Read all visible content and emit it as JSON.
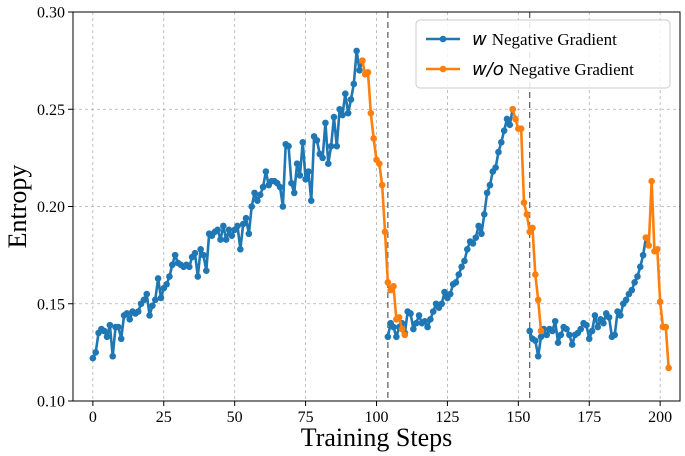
{
  "chart_data": {
    "type": "line",
    "title": "",
    "xlabel": "Training Steps",
    "ylabel": "Entropy",
    "xlim": [
      -7,
      207
    ],
    "ylim": [
      0.1,
      0.3
    ],
    "xticks": [
      0,
      25,
      50,
      75,
      100,
      125,
      150,
      175,
      200
    ],
    "yticks": [
      0.1,
      0.15,
      0.2,
      0.25,
      0.3
    ],
    "xtick_labels": [
      "0",
      "25",
      "50",
      "75",
      "100",
      "125",
      "150",
      "175",
      "200"
    ],
    "ytick_labels": [
      "0.10",
      "0.15",
      "0.20",
      "0.25",
      "0.30"
    ],
    "grid": true,
    "legend_position": "top-right",
    "vlines": [
      104,
      154
    ],
    "series": [
      {
        "name_prefix": "w",
        "name_suffix": "Negative Gradient",
        "color": "#1f77b4",
        "segments": [
          [
            [
              0,
              0.122
            ],
            [
              1,
              0.125
            ],
            [
              2,
              0.135
            ],
            [
              3,
              0.137
            ],
            [
              4,
              0.136
            ],
            [
              5,
              0.133
            ],
            [
              6,
              0.139
            ],
            [
              7,
              0.123
            ],
            [
              8,
              0.138
            ],
            [
              9,
              0.138
            ],
            [
              10,
              0.132
            ],
            [
              11,
              0.144
            ],
            [
              12,
              0.145
            ],
            [
              13,
              0.142
            ],
            [
              14,
              0.146
            ],
            [
              15,
              0.145
            ],
            [
              16,
              0.146
            ],
            [
              17,
              0.15
            ],
            [
              18,
              0.152
            ],
            [
              19,
              0.155
            ],
            [
              20,
              0.144
            ],
            [
              21,
              0.149
            ],
            [
              22,
              0.152
            ],
            [
              23,
              0.163
            ],
            [
              24,
              0.153
            ],
            [
              25,
              0.158
            ],
            [
              26,
              0.16
            ],
            [
              27,
              0.164
            ],
            [
              28,
              0.17
            ],
            [
              29,
              0.175
            ],
            [
              30,
              0.171
            ],
            [
              31,
              0.17
            ],
            [
              32,
              0.169
            ],
            [
              33,
              0.17
            ],
            [
              34,
              0.169
            ],
            [
              35,
              0.174
            ],
            [
              36,
              0.176
            ],
            [
              37,
              0.164
            ],
            [
              38,
              0.178
            ],
            [
              39,
              0.175
            ],
            [
              40,
              0.167
            ],
            [
              41,
              0.186
            ],
            [
              42,
              0.185
            ],
            [
              43,
              0.187
            ],
            [
              44,
              0.188
            ],
            [
              45,
              0.183
            ],
            [
              46,
              0.19
            ],
            [
              47,
              0.183
            ],
            [
              48,
              0.188
            ],
            [
              49,
              0.185
            ],
            [
              50,
              0.188
            ],
            [
              51,
              0.19
            ],
            [
              52,
              0.178
            ],
            [
              53,
              0.191
            ],
            [
              54,
              0.194
            ],
            [
              55,
              0.186
            ],
            [
              56,
              0.2
            ],
            [
              57,
              0.207
            ],
            [
              58,
              0.203
            ],
            [
              59,
              0.206
            ],
            [
              60,
              0.21
            ],
            [
              61,
              0.218
            ],
            [
              62,
              0.211
            ],
            [
              63,
              0.213
            ],
            [
              64,
              0.213
            ],
            [
              65,
              0.212
            ],
            [
              66,
              0.21
            ],
            [
              67,
              0.2
            ],
            [
              68,
              0.232
            ],
            [
              69,
              0.231
            ],
            [
              70,
              0.212
            ],
            [
              71,
              0.207
            ],
            [
              72,
              0.222
            ],
            [
              73,
              0.216
            ],
            [
              74,
              0.233
            ],
            [
              75,
              0.214
            ],
            [
              76,
              0.218
            ],
            [
              77,
              0.203
            ],
            [
              78,
              0.236
            ],
            [
              79,
              0.234
            ],
            [
              80,
              0.227
            ],
            [
              81,
              0.225
            ],
            [
              82,
              0.243
            ],
            [
              83,
              0.222
            ],
            [
              84,
              0.231
            ],
            [
              85,
              0.246
            ],
            [
              86,
              0.231
            ],
            [
              87,
              0.25
            ],
            [
              88,
              0.247
            ],
            [
              89,
              0.258
            ],
            [
              90,
              0.248
            ],
            [
              91,
              0.255
            ],
            [
              92,
              0.263
            ],
            [
              93,
              0.28
            ],
            [
              94,
              0.27
            ],
            [
              95,
              0.275
            ]
          ],
          [
            [
              104,
              0.133
            ],
            [
              105,
              0.14
            ],
            [
              106,
              0.138
            ],
            [
              107,
              0.133
            ],
            [
              108,
              0.138
            ],
            [
              109,
              0.14
            ],
            [
              110,
              0.135
            ],
            [
              111,
              0.146
            ],
            [
              112,
              0.145
            ],
            [
              113,
              0.137
            ],
            [
              114,
              0.14
            ],
            [
              115,
              0.144
            ],
            [
              116,
              0.14
            ],
            [
              117,
              0.141
            ],
            [
              118,
              0.138
            ],
            [
              119,
              0.142
            ],
            [
              120,
              0.146
            ],
            [
              121,
              0.15
            ],
            [
              122,
              0.148
            ],
            [
              123,
              0.15
            ],
            [
              124,
              0.156
            ],
            [
              125,
              0.153
            ],
            [
              126,
              0.155
            ],
            [
              127,
              0.16
            ],
            [
              128,
              0.161
            ],
            [
              129,
              0.165
            ],
            [
              130,
              0.169
            ],
            [
              131,
              0.172
            ],
            [
              132,
              0.178
            ],
            [
              133,
              0.182
            ],
            [
              134,
              0.181
            ],
            [
              135,
              0.184
            ],
            [
              136,
              0.19
            ],
            [
              137,
              0.186
            ],
            [
              138,
              0.196
            ],
            [
              139,
              0.207
            ],
            [
              140,
              0.211
            ],
            [
              141,
              0.218
            ],
            [
              142,
              0.22
            ],
            [
              143,
              0.228
            ],
            [
              144,
              0.233
            ],
            [
              145,
              0.239
            ],
            [
              146,
              0.245
            ],
            [
              147,
              0.242
            ],
            [
              148,
              0.25
            ]
          ],
          [
            [
              154,
              0.136
            ],
            [
              155,
              0.132
            ],
            [
              156,
              0.131
            ],
            [
              157,
              0.123
            ],
            [
              158,
              0.133
            ],
            [
              159,
              0.137
            ],
            [
              160,
              0.134
            ],
            [
              161,
              0.137
            ],
            [
              162,
              0.136
            ],
            [
              163,
              0.141
            ],
            [
              164,
              0.13
            ],
            [
              165,
              0.134
            ],
            [
              166,
              0.138
            ],
            [
              167,
              0.137
            ],
            [
              168,
              0.134
            ],
            [
              169,
              0.129
            ],
            [
              170,
              0.134
            ],
            [
              171,
              0.135
            ],
            [
              172,
              0.137
            ],
            [
              173,
              0.14
            ],
            [
              174,
              0.139
            ],
            [
              175,
              0.132
            ],
            [
              176,
              0.136
            ],
            [
              177,
              0.144
            ],
            [
              178,
              0.138
            ],
            [
              179,
              0.142
            ],
            [
              180,
              0.14
            ],
            [
              181,
              0.145
            ],
            [
              182,
              0.143
            ],
            [
              183,
              0.133
            ],
            [
              184,
              0.134
            ],
            [
              185,
              0.146
            ],
            [
              186,
              0.144
            ],
            [
              187,
              0.15
            ],
            [
              188,
              0.152
            ],
            [
              189,
              0.155
            ],
            [
              190,
              0.157
            ],
            [
              191,
              0.161
            ],
            [
              192,
              0.164
            ],
            [
              193,
              0.169
            ],
            [
              194,
              0.175
            ],
            [
              195,
              0.184
            ]
          ]
        ]
      },
      {
        "name_prefix": "w/o",
        "name_suffix": "Negative Gradient",
        "color": "#ff7f0e",
        "segments": [
          [
            [
              95,
              0.275
            ],
            [
              96,
              0.268
            ],
            [
              97,
              0.269
            ],
            [
              98,
              0.248
            ],
            [
              99,
              0.235
            ],
            [
              100,
              0.224
            ],
            [
              101,
              0.222
            ],
            [
              102,
              0.211
            ],
            [
              103,
              0.187
            ],
            [
              104,
              0.161
            ],
            [
              105,
              0.157
            ],
            [
              106,
              0.159
            ],
            [
              107,
              0.142
            ],
            [
              108,
              0.143
            ],
            [
              109,
              0.137
            ],
            [
              110,
              0.134
            ]
          ],
          [
            [
              148,
              0.25
            ],
            [
              149,
              0.245
            ],
            [
              150,
              0.24
            ],
            [
              151,
              0.24
            ],
            [
              152,
              0.202
            ],
            [
              153,
              0.196
            ],
            [
              154,
              0.187
            ],
            [
              155,
              0.189
            ],
            [
              156,
              0.165
            ],
            [
              157,
              0.152
            ],
            [
              158,
              0.136
            ]
          ],
          [
            [
              195,
              0.184
            ],
            [
              196,
              0.18
            ],
            [
              197,
              0.213
            ],
            [
              198,
              0.177
            ],
            [
              199,
              0.178
            ],
            [
              200,
              0.151
            ],
            [
              201,
              0.138
            ],
            [
              202,
              0.138
            ],
            [
              203,
              0.117
            ]
          ]
        ]
      }
    ]
  }
}
